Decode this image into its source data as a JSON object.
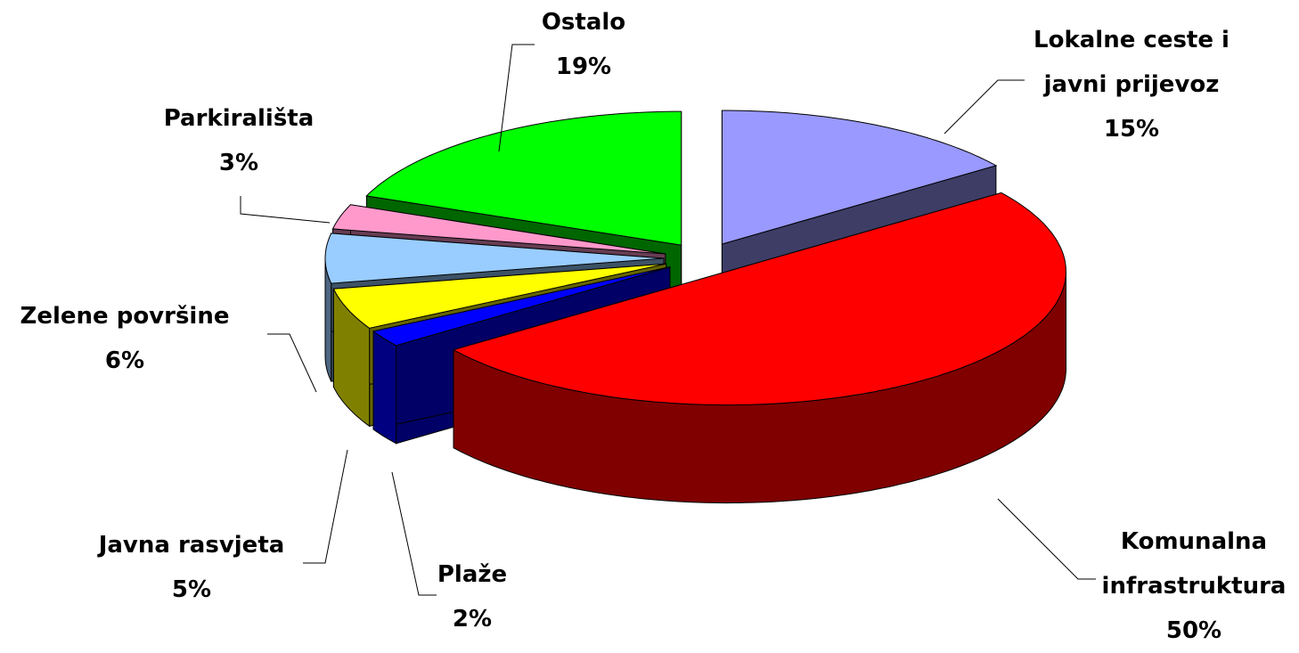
{
  "chart_data": {
    "type": "pie3d",
    "categories": [
      "Lokalne ceste i javni prijevoz",
      "Komunalna infrastruktura",
      "Plaže",
      "Javna rasvjeta",
      "Zelene površine",
      "Parkirališta",
      "Ostalo"
    ],
    "values": [
      15,
      50,
      2,
      5,
      6,
      3,
      19
    ],
    "value_labels": [
      "15%",
      "50%",
      "2%",
      "5%",
      "6%",
      "3%",
      "19%"
    ],
    "colors": [
      "#9999ff",
      "#ff0000",
      "#0000ff",
      "#ffff00",
      "#99ccff",
      "#ff99cc",
      "#00ff00"
    ]
  }
}
